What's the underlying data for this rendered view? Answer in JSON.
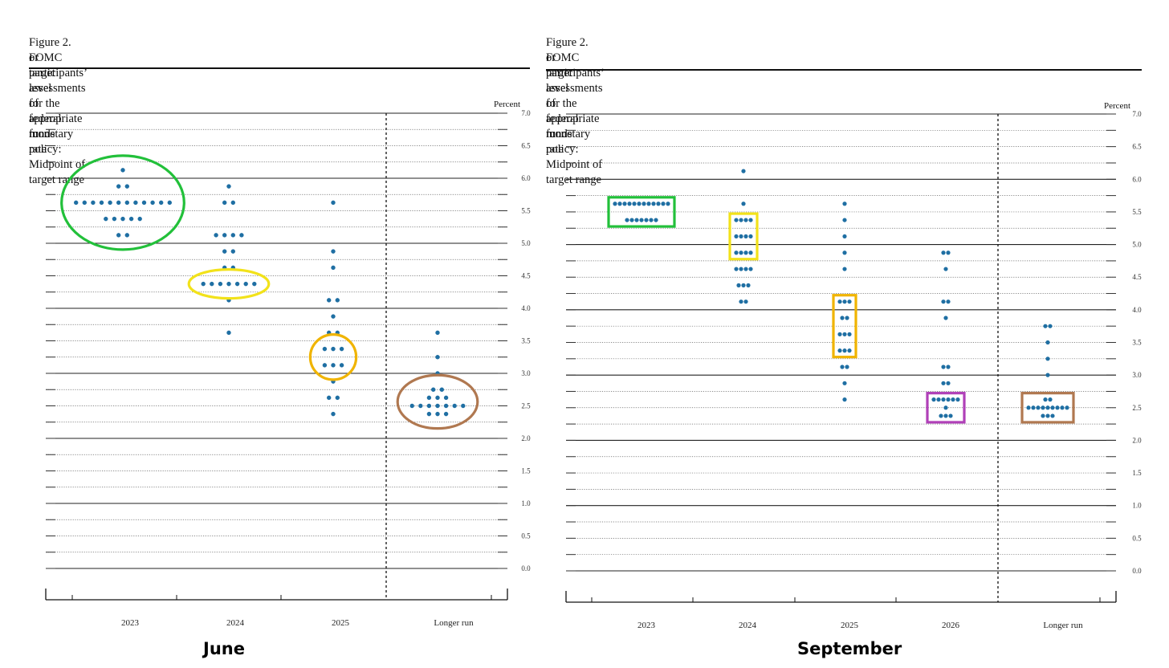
{
  "charts": [
    {
      "key": "june",
      "title_line1": "Figure 2.  FOMC participants’ assessments of appropriate monetary policy:  Midpoint of target range",
      "title_line2": "or target level for the federal funds rate",
      "caption": "June",
      "unit_label": "Percent",
      "tick_labels": [
        "7.0",
        "6.5",
        "6.0",
        "5.5",
        "5.0",
        "4.5",
        "4.0",
        "3.5",
        "3.0",
        "2.5",
        "2.0",
        "1.5",
        "1.0",
        "0.5",
        "0.0"
      ],
      "dot_color": "#1f6fa3",
      "chart_data": {
        "type": "scatter",
        "title": "Figure 2. FOMC participants’ assessments of appropriate monetary policy: Midpoint of target range or target level for the federal funds rate",
        "ylabel": "Percent",
        "ylim": [
          0,
          7
        ],
        "grid": "dotted every 0.25, solid every 1.0",
        "categories": [
          "2023",
          "2024",
          "2025",
          "Longer run"
        ],
        "dots": [
          {
            "category": "2023",
            "values": [
              [
                6.125,
                1
              ],
              [
                5.875,
                2
              ],
              [
                5.625,
                12
              ],
              [
                5.375,
                5
              ],
              [
                5.125,
                2
              ]
            ]
          },
          {
            "category": "2024",
            "values": [
              [
                5.875,
                1
              ],
              [
                5.625,
                2
              ],
              [
                5.125,
                4
              ],
              [
                4.875,
                2
              ],
              [
                4.625,
                2
              ],
              [
                4.375,
                7
              ],
              [
                4.125,
                1
              ],
              [
                3.625,
                1
              ]
            ]
          },
          {
            "category": "2025",
            "values": [
              [
                5.625,
                1
              ],
              [
                4.875,
                1
              ],
              [
                4.625,
                1
              ],
              [
                4.125,
                2
              ],
              [
                3.875,
                1
              ],
              [
                3.625,
                2
              ],
              [
                3.375,
                3
              ],
              [
                3.125,
                3
              ],
              [
                2.875,
                1
              ],
              [
                2.625,
                2
              ],
              [
                2.375,
                1
              ]
            ]
          },
          {
            "category": "Longer run",
            "values": [
              [
                3.625,
                1
              ],
              [
                3.25,
                1
              ],
              [
                3.0,
                1
              ],
              [
                2.75,
                2
              ],
              [
                2.625,
                3
              ],
              [
                2.5,
                7
              ],
              [
                2.375,
                3
              ]
            ]
          }
        ],
        "highlights": [
          {
            "category": "2023",
            "shape": "ellipse",
            "color": "#22c03a",
            "range": [
              5.125,
              6.125
            ]
          },
          {
            "category": "2024",
            "shape": "ellipse",
            "color": "#f2e21a",
            "range": [
              4.375,
              4.375
            ]
          },
          {
            "category": "2025",
            "shape": "ellipse",
            "color": "#f0b400",
            "range": [
              3.125,
              3.375
            ]
          },
          {
            "category": "Longer run",
            "shape": "ellipse",
            "color": "#b07850",
            "range": [
              2.375,
              2.75
            ]
          }
        ]
      }
    },
    {
      "key": "september",
      "title_line1": "Figure 2.  FOMC participants’ assessments of appropriate monetary policy:  Midpoint of target range",
      "title_line2": "or target level for the federal funds rate",
      "caption": "September",
      "unit_label": "Percent",
      "tick_labels": [
        "7.0",
        "6.5",
        "6.0",
        "5.5",
        "5.0",
        "4.5",
        "4.0",
        "3.5",
        "3.0",
        "2.5",
        "2.0",
        "1.5",
        "1.0",
        "0.5",
        "0.0"
      ],
      "dot_color": "#1f6fa3",
      "chart_data": {
        "type": "scatter",
        "title": "Figure 2. FOMC participants’ assessments of appropriate monetary policy: Midpoint of target range or target level for the federal funds rate",
        "ylabel": "Percent",
        "ylim": [
          0,
          7
        ],
        "grid": "dotted every 0.25, solid every 1.0",
        "categories": [
          "2023",
          "2024",
          "2025",
          "2026",
          "Longer run"
        ],
        "dots": [
          {
            "category": "2023",
            "values": [
              [
                5.625,
                12
              ],
              [
                5.375,
                7
              ]
            ]
          },
          {
            "category": "2024",
            "values": [
              [
                6.125,
                1
              ],
              [
                5.625,
                1
              ],
              [
                5.375,
                4
              ],
              [
                5.125,
                4
              ],
              [
                4.875,
                4
              ],
              [
                4.625,
                4
              ],
              [
                4.375,
                3
              ],
              [
                4.125,
                2
              ]
            ]
          },
          {
            "category": "2025",
            "values": [
              [
                5.625,
                1
              ],
              [
                5.375,
                1
              ],
              [
                5.125,
                1
              ],
              [
                4.875,
                1
              ],
              [
                4.625,
                1
              ],
              [
                4.125,
                3
              ],
              [
                3.875,
                2
              ],
              [
                3.625,
                3
              ],
              [
                3.375,
                3
              ],
              [
                3.125,
                2
              ],
              [
                2.875,
                1
              ],
              [
                2.625,
                1
              ]
            ]
          },
          {
            "category": "2026",
            "values": [
              [
                4.875,
                2
              ],
              [
                4.625,
                1
              ],
              [
                4.125,
                2
              ],
              [
                3.875,
                1
              ],
              [
                3.125,
                2
              ],
              [
                2.875,
                2
              ],
              [
                2.625,
                6
              ],
              [
                2.5,
                1
              ],
              [
                2.375,
                3
              ]
            ]
          },
          {
            "category": "Longer run",
            "values": [
              [
                3.75,
                2
              ],
              [
                3.5,
                1
              ],
              [
                3.25,
                1
              ],
              [
                3.0,
                1
              ],
              [
                2.625,
                2
              ],
              [
                2.5,
                9
              ],
              [
                2.375,
                3
              ]
            ]
          }
        ],
        "highlights": [
          {
            "category": "2023",
            "shape": "rect",
            "color": "#22c03a",
            "range": [
              5.375,
              5.625
            ]
          },
          {
            "category": "2024",
            "shape": "rect",
            "color": "#f2e21a",
            "range": [
              4.875,
              5.375
            ]
          },
          {
            "category": "2025",
            "shape": "rect",
            "color": "#f0b400",
            "range": [
              3.375,
              4.125
            ]
          },
          {
            "category": "2026",
            "shape": "rect",
            "color": "#b040b8",
            "range": [
              2.375,
              2.625
            ]
          },
          {
            "category": "Longer run",
            "shape": "rect",
            "color": "#b07850",
            "range": [
              2.375,
              2.625
            ]
          }
        ]
      }
    }
  ]
}
